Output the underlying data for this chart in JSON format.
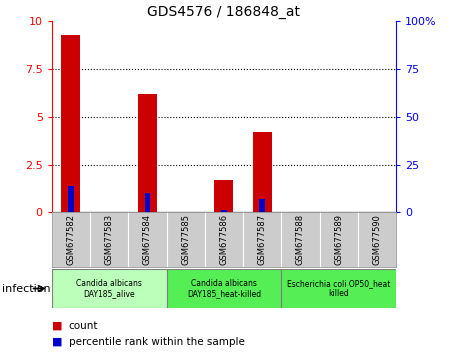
{
  "title": "GDS4576 / 186848_at",
  "samples": [
    "GSM677582",
    "GSM677583",
    "GSM677584",
    "GSM677585",
    "GSM677586",
    "GSM677587",
    "GSM677588",
    "GSM677589",
    "GSM677590"
  ],
  "count_values": [
    9.3,
    0.0,
    6.2,
    0.0,
    1.7,
    4.2,
    0.0,
    0.0,
    0.0
  ],
  "percentile_values": [
    14.0,
    0.0,
    10.0,
    0.0,
    1.5,
    7.0,
    0.0,
    0.0,
    0.0
  ],
  "left_ylim": [
    0,
    10
  ],
  "right_ylim": [
    0,
    100
  ],
  "left_yticks": [
    0,
    2.5,
    5,
    7.5,
    10
  ],
  "right_yticks": [
    0,
    25,
    50,
    75,
    100
  ],
  "left_yticklabels": [
    "0",
    "2.5",
    "5",
    "7.5",
    "10"
  ],
  "right_yticklabels": [
    "0",
    "25",
    "50",
    "75",
    "100%"
  ],
  "bar_color": "#cc0000",
  "percentile_color": "#0000cc",
  "bar_width": 0.5,
  "percentile_bar_width": 0.15,
  "grid_color": "black",
  "groups": [
    {
      "label": "Candida albicans\nDAY185_alive",
      "start": 0,
      "end": 3,
      "color": "#bbffbb"
    },
    {
      "label": "Candida albicans\nDAY185_heat-killed",
      "start": 3,
      "end": 6,
      "color": "#55ee55"
    },
    {
      "label": "Escherichia coli OP50_heat\nkilled",
      "start": 6,
      "end": 9,
      "color": "#55ee55"
    }
  ],
  "xlabel_infection": "infection",
  "legend_count_label": "count",
  "legend_percentile_label": "percentile rank within the sample",
  "tick_bg_color": "#cccccc",
  "sample_label_fontsize": 6,
  "group_label_fontsize": 5.5
}
